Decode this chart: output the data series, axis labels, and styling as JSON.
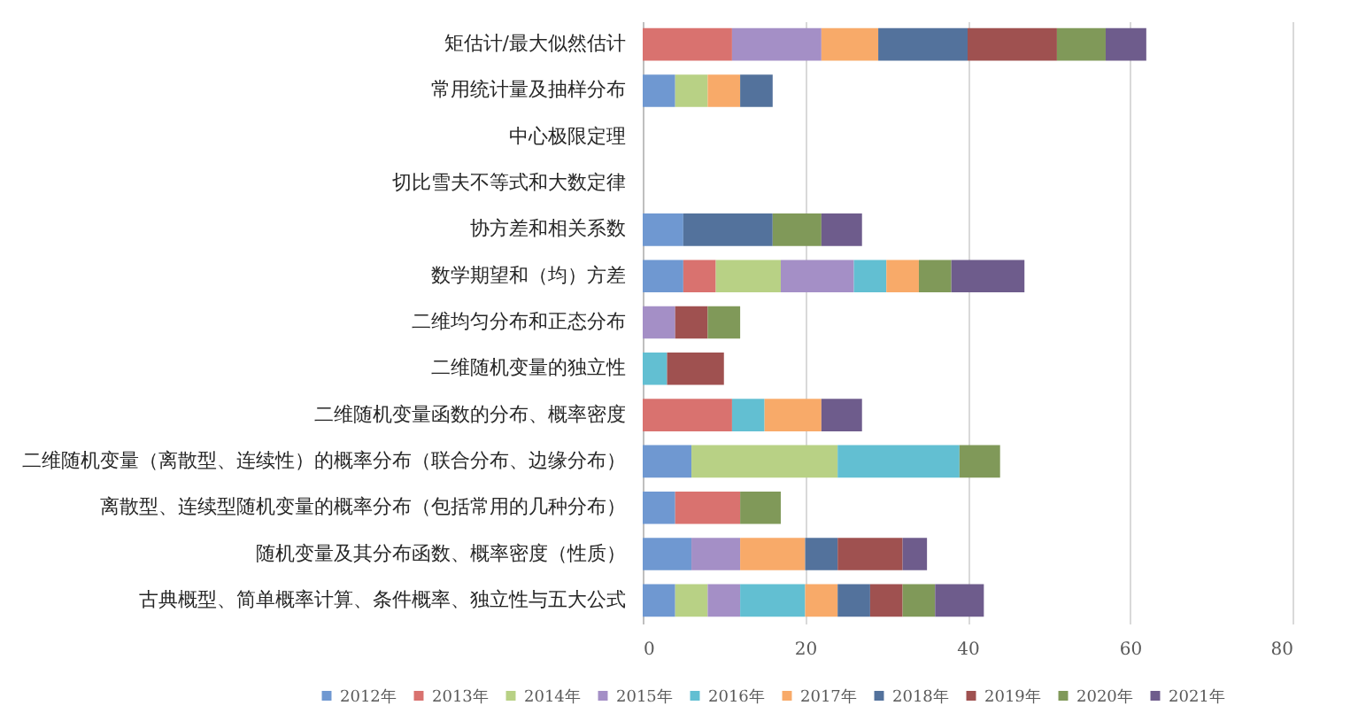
{
  "chart_data": {
    "type": "bar",
    "orientation": "horizontal",
    "stacked": true,
    "categories": [
      "矩估计/最大似然估计",
      "常用统计量及抽样分布",
      "中心极限定理",
      "切比雪夫不等式和大数定律",
      "协方差和相关系数",
      "数学期望和（均）方差",
      "二维均匀分布和正态分布",
      "二维随机变量的独立性",
      "二维随机变量函数的分布、概率密度",
      "二维随机变量（离散型、连续性）的概率分布（联合分布、边缘分布）",
      "离散型、连续型随机变量的概率分布（包括常用的几种分布）",
      "随机变量及其分布函数、概率密度（性质）",
      "古典概型、简单概率计算、条件概率、独立性与五大公式"
    ],
    "series": [
      {
        "name": "2012年",
        "color": "#6f98d1",
        "values": [
          null,
          4,
          null,
          null,
          5,
          5,
          null,
          null,
          null,
          6,
          4,
          6,
          4
        ]
      },
      {
        "name": "2013年",
        "color": "#d9726f",
        "values": [
          11,
          null,
          null,
          null,
          null,
          4,
          null,
          null,
          11,
          null,
          8,
          null,
          null
        ]
      },
      {
        "name": "2014年",
        "color": "#b8d185",
        "values": [
          null,
          4,
          null,
          null,
          null,
          8,
          null,
          null,
          null,
          18,
          null,
          null,
          4
        ]
      },
      {
        "name": "2015年",
        "color": "#a48fc6",
        "values": [
          11,
          null,
          null,
          null,
          null,
          9,
          4,
          null,
          null,
          null,
          null,
          6,
          4
        ]
      },
      {
        "name": "2016年",
        "color": "#62bfd2",
        "values": [
          null,
          null,
          null,
          null,
          null,
          4,
          null,
          3,
          4,
          15,
          null,
          null,
          8
        ]
      },
      {
        "name": "2017年",
        "color": "#f8aa69",
        "values": [
          7,
          4,
          null,
          null,
          null,
          4,
          null,
          null,
          7,
          null,
          null,
          8,
          4
        ]
      },
      {
        "name": "2018年",
        "color": "#53729c",
        "values": [
          11,
          4,
          null,
          null,
          11,
          null,
          null,
          null,
          null,
          null,
          null,
          4,
          4
        ]
      },
      {
        "name": "2019年",
        "color": "#9f5150",
        "values": [
          11,
          null,
          null,
          null,
          null,
          null,
          4,
          7,
          null,
          null,
          null,
          8,
          4
        ]
      },
      {
        "name": "2020年",
        "color": "#809959",
        "values": [
          6,
          null,
          null,
          null,
          6,
          4,
          4,
          null,
          null,
          5,
          5,
          null,
          4
        ]
      },
      {
        "name": "2021年",
        "color": "#6e5c8c",
        "values": [
          5,
          null,
          null,
          null,
          5,
          9,
          null,
          null,
          5,
          null,
          null,
          3,
          6
        ]
      }
    ],
    "xlim": [
      0,
      80
    ],
    "xticks": [
      0,
      20,
      40,
      60,
      80
    ],
    "grid": "x",
    "legend": "bottom"
  }
}
